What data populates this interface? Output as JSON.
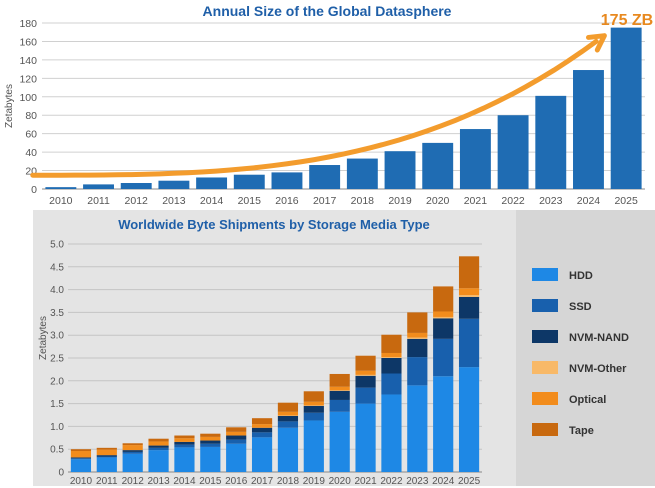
{
  "chart_data": [
    {
      "type": "bar",
      "title": "Annual Size of the Global Datasphere",
      "ylabel": "Zetabytes",
      "xlabel": "",
      "categories": [
        "2010",
        "2011",
        "2012",
        "2013",
        "2014",
        "2015",
        "2016",
        "2017",
        "2018",
        "2019",
        "2020",
        "2021",
        "2022",
        "2023",
        "2024",
        "2025"
      ],
      "values": [
        2,
        5,
        6.5,
        9,
        12.5,
        15.5,
        18,
        26,
        33,
        41,
        50,
        65,
        80,
        101,
        129,
        175
      ],
      "ylim": [
        0,
        180
      ],
      "yticks": [
        0,
        20,
        40,
        60,
        80,
        100,
        120,
        140,
        160,
        180
      ],
      "annotation": "175 ZB",
      "grid": true,
      "colors": {
        "bar": "#1f6cb3",
        "arrow": "#f39c2d",
        "annotation": "#e8891f",
        "title": "#1f5fa8"
      }
    },
    {
      "type": "bar",
      "stacked": true,
      "title": "Worldwide Byte Shipments by Storage Media Type",
      "ylabel": "Zetabytes",
      "xlabel": "",
      "categories": [
        "2010",
        "2011",
        "2012",
        "2013",
        "2014",
        "2015",
        "2016",
        "2017",
        "2018",
        "2019",
        "2020",
        "2021",
        "2022",
        "2023",
        "2024",
        "2025"
      ],
      "ylim": [
        0,
        5.0
      ],
      "yticks": [
        "0",
        "0.5",
        "1.0",
        "1.5",
        "2.0",
        "2.5",
        "3.0",
        "3.5",
        "4.0",
        "4.5",
        "5.0"
      ],
      "legend_position": "right",
      "series": [
        {
          "name": "HDD",
          "color": "#1e88e5",
          "values": [
            0.28,
            0.32,
            0.4,
            0.48,
            0.54,
            0.55,
            0.62,
            0.76,
            0.97,
            1.13,
            1.32,
            1.5,
            1.7,
            1.9,
            2.1,
            2.3
          ]
        },
        {
          "name": "SSD",
          "color": "#1860ad",
          "values": [
            0.02,
            0.02,
            0.04,
            0.05,
            0.06,
            0.07,
            0.09,
            0.11,
            0.14,
            0.17,
            0.26,
            0.35,
            0.46,
            0.62,
            0.82,
            1.06
          ]
        },
        {
          "name": "NVM-NAND",
          "color": "#0d3767",
          "values": [
            0.02,
            0.03,
            0.04,
            0.05,
            0.06,
            0.07,
            0.09,
            0.1,
            0.12,
            0.15,
            0.2,
            0.26,
            0.34,
            0.4,
            0.45,
            0.48
          ]
        },
        {
          "name": "NVM-Other",
          "color": "#f8b968",
          "values": [
            0.0,
            0.0,
            0.0,
            0.0,
            0.0,
            0.0,
            0.0,
            0.0,
            0.01,
            0.01,
            0.01,
            0.02,
            0.02,
            0.03,
            0.03,
            0.04
          ]
        },
        {
          "name": "Optical",
          "color": "#f28c1c",
          "values": [
            0.14,
            0.12,
            0.11,
            0.09,
            0.08,
            0.08,
            0.08,
            0.08,
            0.08,
            0.08,
            0.08,
            0.09,
            0.09,
            0.1,
            0.12,
            0.15
          ]
        },
        {
          "name": "Tape",
          "color": "#c8690f",
          "values": [
            0.04,
            0.04,
            0.04,
            0.06,
            0.06,
            0.07,
            0.1,
            0.13,
            0.2,
            0.23,
            0.28,
            0.33,
            0.4,
            0.45,
            0.55,
            0.7
          ]
        }
      ],
      "colors": {
        "title": "#1f5fa8",
        "panel": "#e4e4e4",
        "legend_panel": "#d6d6d6"
      }
    }
  ]
}
